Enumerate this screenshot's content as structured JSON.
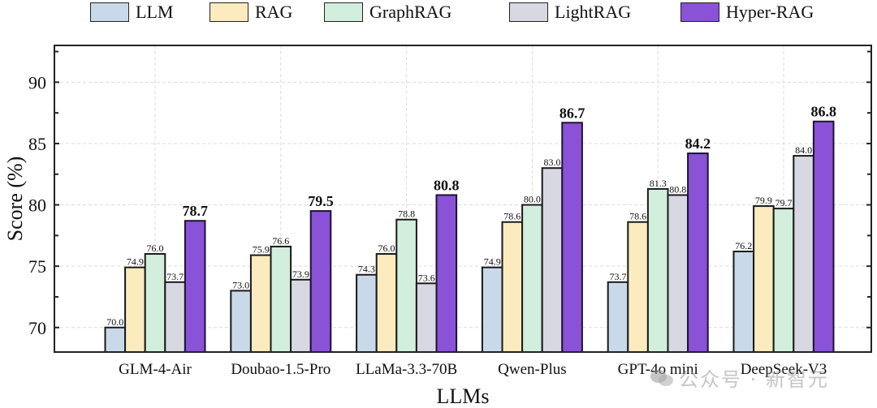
{
  "chart_data": {
    "type": "bar",
    "title": "",
    "xlabel": "LLMs",
    "ylabel": "Score (%)",
    "ylim": [
      68,
      93
    ],
    "yticks": [
      70,
      75,
      80,
      85,
      90
    ],
    "grid": true,
    "legend_position": "top-center",
    "categories": [
      "GLM-4-Air",
      "Doubao-1.5-Pro",
      "LLaMa-3.3-70B",
      "Qwen-Plus",
      "GPT-4o mini",
      "DeepSeek-V3"
    ],
    "series": [
      {
        "name": "LLM",
        "color": "#c9d9e9",
        "values": [
          70.0,
          73.0,
          74.3,
          74.9,
          73.7,
          76.2
        ]
      },
      {
        "name": "RAG",
        "color": "#fcebbf",
        "values": [
          74.9,
          75.9,
          76.0,
          78.6,
          78.6,
          79.9
        ]
      },
      {
        "name": "GraphRAG",
        "color": "#d2eedd",
        "values": [
          76.0,
          76.6,
          78.8,
          80.0,
          81.3,
          79.7
        ]
      },
      {
        "name": "LightRAG",
        "color": "#d8d8e3",
        "values": [
          73.7,
          73.9,
          73.6,
          83.0,
          80.8,
          84.0
        ]
      },
      {
        "name": "Hyper-RAG",
        "color": "#8a52d6",
        "values": [
          78.7,
          79.5,
          80.8,
          86.7,
          84.2,
          86.8
        ],
        "label_bold": true
      }
    ]
  },
  "watermark": {
    "text": "公众号 · 新智元"
  }
}
